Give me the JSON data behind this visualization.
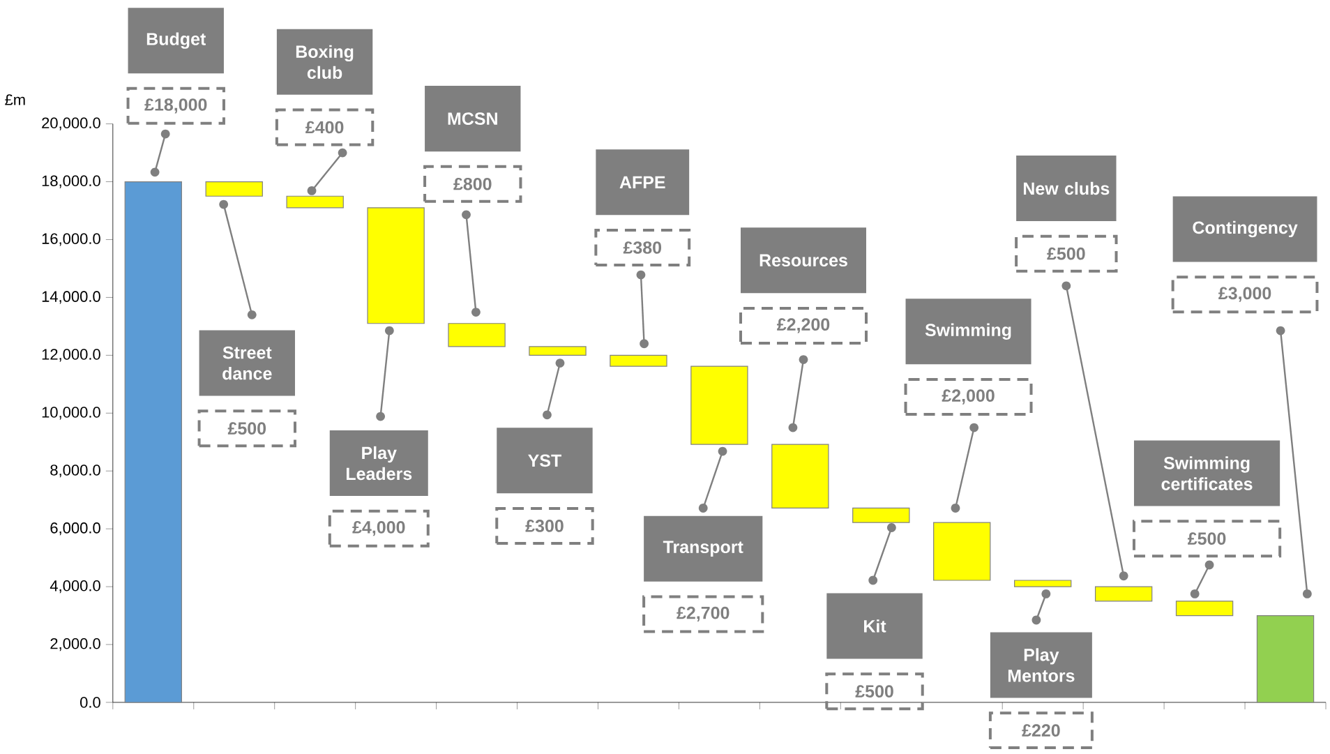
{
  "chart_data": {
    "type": "bar",
    "ylabel": "£m",
    "categories": [
      null,
      null,
      null,
      null,
      null,
      null,
      null,
      null,
      null,
      null,
      null,
      null,
      null,
      null,
      null
    ],
    "values": [
      18000,
      500,
      400,
      4000,
      800,
      300,
      380,
      2700,
      2200,
      500,
      2000,
      220,
      500,
      500,
      3000
    ],
    "base": [
      0,
      17500,
      17100,
      13100,
      12300,
      12000,
      11620,
      8920,
      6720,
      6220,
      4220,
      4000,
      3500,
      3000,
      0
    ],
    "colors": [
      "#5b9bd5",
      "#ffff00",
      "#ffff00",
      "#ffff00",
      "#ffff00",
      "#ffff00",
      "#ffff00",
      "#ffff00",
      "#ffff00",
      "#ffff00",
      "#ffff00",
      "#ffff00",
      "#ffff00",
      "#ffff00",
      "#92d050"
    ],
    "annotations": [
      "Budget",
      "£18,000",
      "Street dance",
      "£500",
      "Boxing club",
      "£400",
      "Play Leaders",
      "£4,000",
      "MCSN",
      "£800",
      "YST",
      "£300",
      "AFPE",
      "£380",
      "Transport",
      "£2,700",
      "Resources",
      "£2,200",
      "Kit",
      "£500",
      "Swimming",
      "£2,000",
      "Play Mentors",
      "£220",
      "New clubs",
      "£500",
      "Swimming certificates",
      "£500",
      "Contingency",
      "£3,000"
    ],
    "ylim": [
      0,
      20000
    ],
    "yticks": [
      {
        "value": 0,
        "label": "0.0"
      },
      {
        "value": 2000,
        "label": "2,000.0"
      },
      {
        "value": 4000,
        "label": "4,000.0"
      },
      {
        "value": 6000,
        "label": "6,000.0"
      },
      {
        "value": 8000,
        "label": "8,000.0"
      },
      {
        "value": 10000,
        "label": "10,000.0"
      },
      {
        "value": 12000,
        "label": "12,000.0"
      },
      {
        "value": 14000,
        "label": "14,000.0"
      },
      {
        "value": 16000,
        "label": "16,000.0"
      },
      {
        "value": 18000,
        "label": "18,000.0"
      },
      {
        "value": 20000,
        "label": "20,000.0"
      }
    ]
  }
}
